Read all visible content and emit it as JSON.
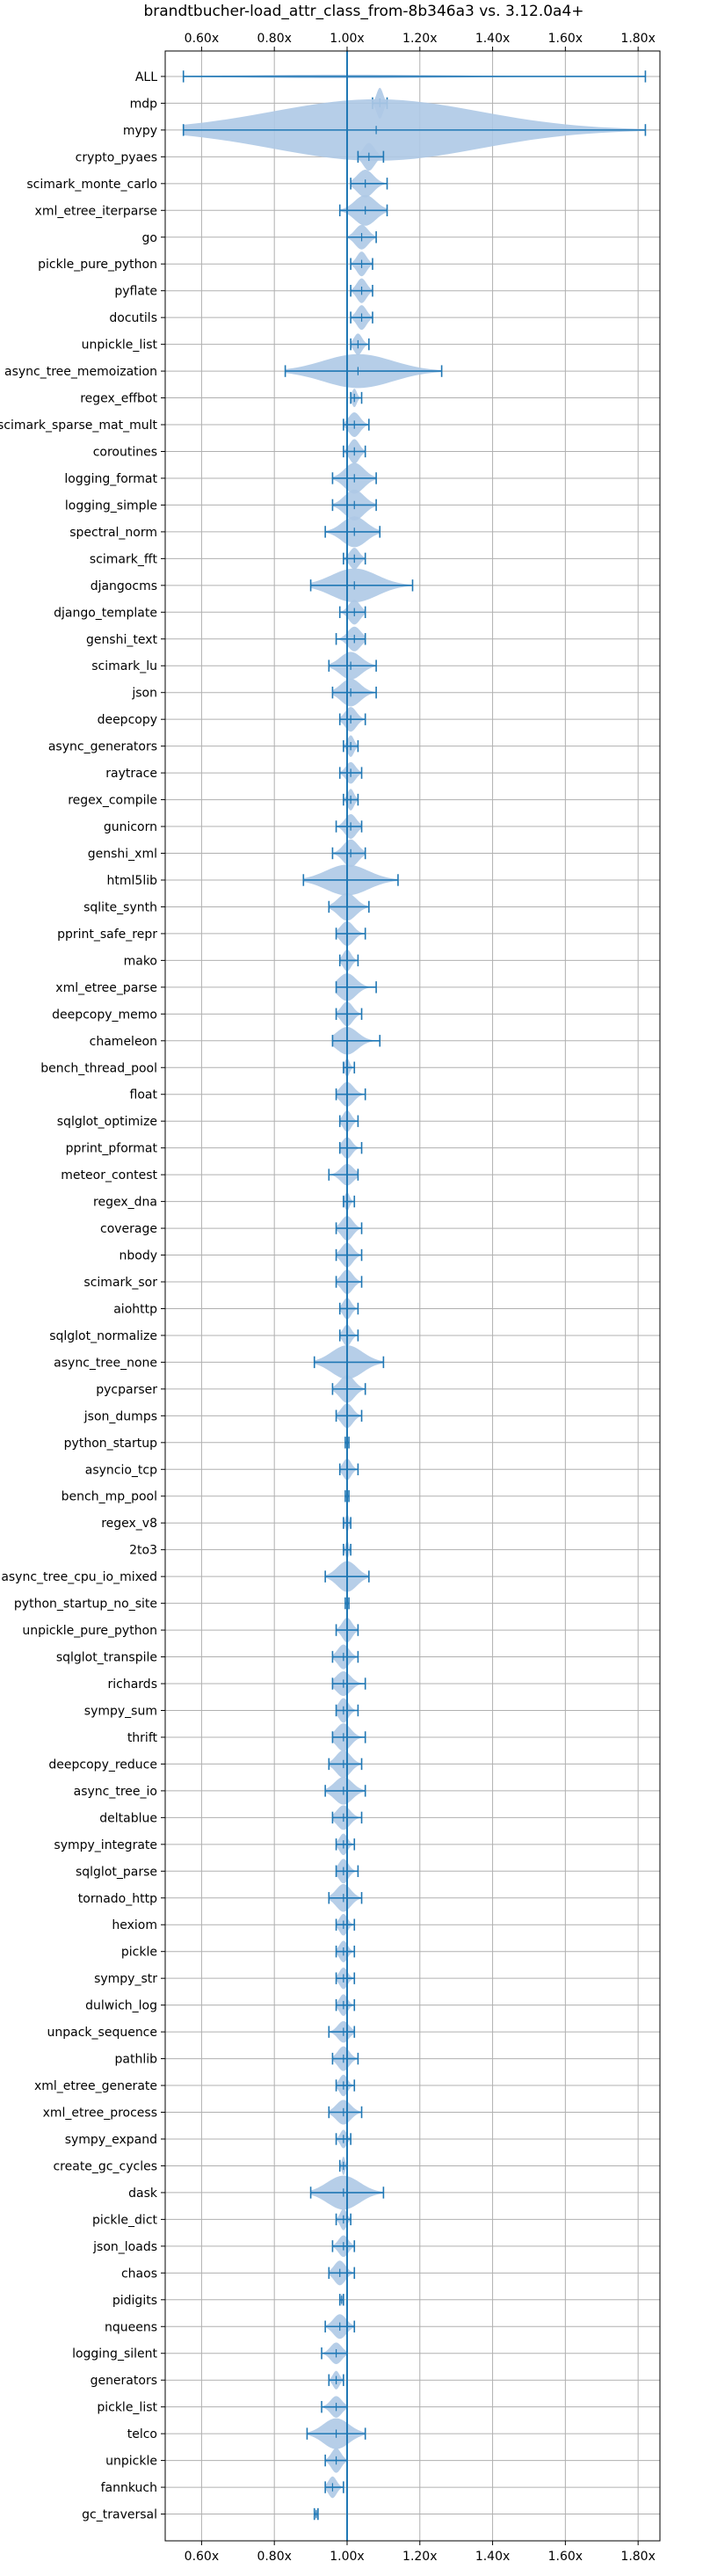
{
  "chart_data": {
    "type": "violin",
    "title": "brandtbucher-load_attr_class_from-8b346a3 vs. 3.12.0a4+",
    "xlabel": "",
    "ylabel": "",
    "xlim": [
      0.5,
      1.86
    ],
    "x_ticks": [
      0.6,
      0.8,
      1.0,
      1.2,
      1.4,
      1.6,
      1.8
    ],
    "x_tick_labels": [
      "0.60x",
      "0.80x",
      "1.00x",
      "1.20x",
      "1.40x",
      "1.60x",
      "1.80x"
    ],
    "reference_line": 1.0,
    "grid": true,
    "color": "#1f77b4",
    "fill_color": "#aec9e6",
    "series": [
      {
        "name": "ALL",
        "min": 0.55,
        "max": 1.82,
        "median": 1.0,
        "width": 0.06
      },
      {
        "name": "mdp",
        "min": 1.07,
        "max": 1.11,
        "median": 1.09,
        "width": 0.5
      },
      {
        "name": "mypy",
        "min": 0.55,
        "max": 1.82,
        "median": 1.08,
        "width": 1.0
      },
      {
        "name": "crypto_pyaes",
        "min": 1.03,
        "max": 1.1,
        "median": 1.06,
        "width": 0.45
      },
      {
        "name": "scimark_monte_carlo",
        "min": 1.01,
        "max": 1.11,
        "median": 1.05,
        "width": 0.45
      },
      {
        "name": "xml_etree_iterparse",
        "min": 0.98,
        "max": 1.11,
        "median": 1.05,
        "width": 0.5
      },
      {
        "name": "go",
        "min": 1.0,
        "max": 1.08,
        "median": 1.04,
        "width": 0.4
      },
      {
        "name": "pickle_pure_python",
        "min": 1.01,
        "max": 1.07,
        "median": 1.04,
        "width": 0.4
      },
      {
        "name": "pyflate",
        "min": 1.01,
        "max": 1.07,
        "median": 1.04,
        "width": 0.4
      },
      {
        "name": "docutils",
        "min": 1.01,
        "max": 1.07,
        "median": 1.04,
        "width": 0.4
      },
      {
        "name": "unpickle_list",
        "min": 1.01,
        "max": 1.06,
        "median": 1.03,
        "width": 0.35
      },
      {
        "name": "async_tree_memoization",
        "min": 0.83,
        "max": 1.26,
        "median": 1.03,
        "width": 0.55
      },
      {
        "name": "regex_effbot",
        "min": 1.01,
        "max": 1.04,
        "median": 1.02,
        "width": 0.3
      },
      {
        "name": "scimark_sparse_mat_mult",
        "min": 0.99,
        "max": 1.06,
        "median": 1.02,
        "width": 0.4
      },
      {
        "name": "coroutines",
        "min": 0.99,
        "max": 1.05,
        "median": 1.02,
        "width": 0.4
      },
      {
        "name": "logging_format",
        "min": 0.96,
        "max": 1.08,
        "median": 1.02,
        "width": 0.5
      },
      {
        "name": "logging_simple",
        "min": 0.96,
        "max": 1.08,
        "median": 1.02,
        "width": 0.5
      },
      {
        "name": "spectral_norm",
        "min": 0.94,
        "max": 1.09,
        "median": 1.02,
        "width": 0.5
      },
      {
        "name": "scimark_fft",
        "min": 0.99,
        "max": 1.05,
        "median": 1.02,
        "width": 0.35
      },
      {
        "name": "djangocms",
        "min": 0.9,
        "max": 1.18,
        "median": 1.02,
        "width": 0.55
      },
      {
        "name": "django_template",
        "min": 0.98,
        "max": 1.05,
        "median": 1.02,
        "width": 0.4
      },
      {
        "name": "genshi_text",
        "min": 0.97,
        "max": 1.05,
        "median": 1.02,
        "width": 0.4
      },
      {
        "name": "scimark_lu",
        "min": 0.95,
        "max": 1.08,
        "median": 1.01,
        "width": 0.45
      },
      {
        "name": "json",
        "min": 0.96,
        "max": 1.08,
        "median": 1.01,
        "width": 0.45
      },
      {
        "name": "deepcopy",
        "min": 0.98,
        "max": 1.05,
        "median": 1.01,
        "width": 0.4
      },
      {
        "name": "async_generators",
        "min": 0.99,
        "max": 1.03,
        "median": 1.01,
        "width": 0.35
      },
      {
        "name": "raytrace",
        "min": 0.98,
        "max": 1.04,
        "median": 1.01,
        "width": 0.35
      },
      {
        "name": "regex_compile",
        "min": 0.99,
        "max": 1.03,
        "median": 1.01,
        "width": 0.35
      },
      {
        "name": "gunicorn",
        "min": 0.97,
        "max": 1.04,
        "median": 1.01,
        "width": 0.4
      },
      {
        "name": "genshi_xml",
        "min": 0.96,
        "max": 1.05,
        "median": 1.01,
        "width": 0.45
      },
      {
        "name": "html5lib",
        "min": 0.88,
        "max": 1.14,
        "median": 1.0,
        "width": 0.5
      },
      {
        "name": "sqlite_synth",
        "min": 0.95,
        "max": 1.06,
        "median": 1.0,
        "width": 0.45
      },
      {
        "name": "pprint_safe_repr",
        "min": 0.97,
        "max": 1.05,
        "median": 1.0,
        "width": 0.4
      },
      {
        "name": "mako",
        "min": 0.98,
        "max": 1.03,
        "median": 1.0,
        "width": 0.35
      },
      {
        "name": "xml_etree_parse",
        "min": 0.97,
        "max": 1.08,
        "median": 1.0,
        "width": 0.45
      },
      {
        "name": "deepcopy_memo",
        "min": 0.97,
        "max": 1.04,
        "median": 1.0,
        "width": 0.4
      },
      {
        "name": "chameleon",
        "min": 0.96,
        "max": 1.09,
        "median": 1.0,
        "width": 0.45
      },
      {
        "name": "bench_thread_pool",
        "min": 0.99,
        "max": 1.02,
        "median": 1.0,
        "width": 0.3
      },
      {
        "name": "float",
        "min": 0.97,
        "max": 1.05,
        "median": 1.0,
        "width": 0.4
      },
      {
        "name": "sqlglot_optimize",
        "min": 0.98,
        "max": 1.03,
        "median": 1.0,
        "width": 0.35
      },
      {
        "name": "pprint_pformat",
        "min": 0.98,
        "max": 1.04,
        "median": 1.0,
        "width": 0.35
      },
      {
        "name": "meteor_contest",
        "min": 0.95,
        "max": 1.03,
        "median": 1.0,
        "width": 0.35
      },
      {
        "name": "regex_dna",
        "min": 0.99,
        "max": 1.02,
        "median": 1.0,
        "width": 0.3
      },
      {
        "name": "coverage",
        "min": 0.97,
        "max": 1.04,
        "median": 1.0,
        "width": 0.4
      },
      {
        "name": "nbody",
        "min": 0.97,
        "max": 1.04,
        "median": 1.0,
        "width": 0.4
      },
      {
        "name": "scimark_sor",
        "min": 0.97,
        "max": 1.04,
        "median": 1.0,
        "width": 0.4
      },
      {
        "name": "aiohttp",
        "min": 0.98,
        "max": 1.03,
        "median": 1.0,
        "width": 0.35
      },
      {
        "name": "sqlglot_normalize",
        "min": 0.98,
        "max": 1.03,
        "median": 1.0,
        "width": 0.35
      },
      {
        "name": "async_tree_none",
        "min": 0.91,
        "max": 1.1,
        "median": 1.0,
        "width": 0.55
      },
      {
        "name": "pycparser",
        "min": 0.96,
        "max": 1.05,
        "median": 1.0,
        "width": 0.45
      },
      {
        "name": "json_dumps",
        "min": 0.97,
        "max": 1.04,
        "median": 1.0,
        "width": 0.4
      },
      {
        "name": "python_startup",
        "min": 0.995,
        "max": 1.005,
        "median": 1.0,
        "width": 0.15
      },
      {
        "name": "asyncio_tcp",
        "min": 0.98,
        "max": 1.03,
        "median": 1.0,
        "width": 0.35
      },
      {
        "name": "bench_mp_pool",
        "min": 0.995,
        "max": 1.005,
        "median": 1.0,
        "width": 0.15
      },
      {
        "name": "regex_v8",
        "min": 0.99,
        "max": 1.01,
        "median": 1.0,
        "width": 0.3
      },
      {
        "name": "2to3",
        "min": 0.99,
        "max": 1.01,
        "median": 1.0,
        "width": 0.3
      },
      {
        "name": "async_tree_cpu_io_mixed",
        "min": 0.94,
        "max": 1.06,
        "median": 1.0,
        "width": 0.5
      },
      {
        "name": "python_startup_no_site",
        "min": 0.995,
        "max": 1.005,
        "median": 1.0,
        "width": 0.15
      },
      {
        "name": "unpickle_pure_python",
        "min": 0.97,
        "max": 1.03,
        "median": 1.0,
        "width": 0.4
      },
      {
        "name": "sqlglot_transpile",
        "min": 0.96,
        "max": 1.03,
        "median": 0.99,
        "width": 0.4
      },
      {
        "name": "richards",
        "min": 0.96,
        "max": 1.05,
        "median": 0.99,
        "width": 0.4
      },
      {
        "name": "sympy_sum",
        "min": 0.97,
        "max": 1.03,
        "median": 0.99,
        "width": 0.4
      },
      {
        "name": "thrift",
        "min": 0.96,
        "max": 1.05,
        "median": 0.99,
        "width": 0.45
      },
      {
        "name": "deepcopy_reduce",
        "min": 0.95,
        "max": 1.04,
        "median": 0.99,
        "width": 0.45
      },
      {
        "name": "async_tree_io",
        "min": 0.94,
        "max": 1.05,
        "median": 0.99,
        "width": 0.45
      },
      {
        "name": "deltablue",
        "min": 0.96,
        "max": 1.04,
        "median": 0.99,
        "width": 0.4
      },
      {
        "name": "sympy_integrate",
        "min": 0.97,
        "max": 1.02,
        "median": 0.99,
        "width": 0.35
      },
      {
        "name": "sqlglot_parse",
        "min": 0.97,
        "max": 1.03,
        "median": 0.99,
        "width": 0.4
      },
      {
        "name": "tornado_http",
        "min": 0.95,
        "max": 1.04,
        "median": 0.99,
        "width": 0.45
      },
      {
        "name": "hexiom",
        "min": 0.97,
        "max": 1.02,
        "median": 0.99,
        "width": 0.35
      },
      {
        "name": "pickle",
        "min": 0.97,
        "max": 1.02,
        "median": 0.99,
        "width": 0.35
      },
      {
        "name": "sympy_str",
        "min": 0.97,
        "max": 1.02,
        "median": 0.99,
        "width": 0.35
      },
      {
        "name": "dulwich_log",
        "min": 0.97,
        "max": 1.02,
        "median": 0.99,
        "width": 0.35
      },
      {
        "name": "unpack_sequence",
        "min": 0.95,
        "max": 1.02,
        "median": 0.99,
        "width": 0.35
      },
      {
        "name": "pathlib",
        "min": 0.96,
        "max": 1.03,
        "median": 0.99,
        "width": 0.4
      },
      {
        "name": "xml_etree_generate",
        "min": 0.97,
        "max": 1.02,
        "median": 0.99,
        "width": 0.35
      },
      {
        "name": "xml_etree_process",
        "min": 0.95,
        "max": 1.04,
        "median": 0.99,
        "width": 0.4
      },
      {
        "name": "sympy_expand",
        "min": 0.97,
        "max": 1.01,
        "median": 0.99,
        "width": 0.3
      },
      {
        "name": "create_gc_cycles",
        "min": 0.98,
        "max": 1.0,
        "median": 0.99,
        "width": 0.3
      },
      {
        "name": "dask",
        "min": 0.9,
        "max": 1.1,
        "median": 0.99,
        "width": 0.55
      },
      {
        "name": "pickle_dict",
        "min": 0.97,
        "max": 1.01,
        "median": 0.99,
        "width": 0.35
      },
      {
        "name": "json_loads",
        "min": 0.96,
        "max": 1.02,
        "median": 0.99,
        "width": 0.35
      },
      {
        "name": "chaos",
        "min": 0.95,
        "max": 1.02,
        "median": 0.98,
        "width": 0.4
      },
      {
        "name": "pidigits",
        "min": 0.98,
        "max": 0.99,
        "median": 0.985,
        "width": 0.2
      },
      {
        "name": "nqueens",
        "min": 0.94,
        "max": 1.02,
        "median": 0.98,
        "width": 0.4
      },
      {
        "name": "logging_silent",
        "min": 0.93,
        "max": 1.0,
        "median": 0.97,
        "width": 0.35
      },
      {
        "name": "generators",
        "min": 0.95,
        "max": 0.99,
        "median": 0.97,
        "width": 0.3
      },
      {
        "name": "pickle_list",
        "min": 0.93,
        "max": 1.0,
        "median": 0.97,
        "width": 0.35
      },
      {
        "name": "telco",
        "min": 0.89,
        "max": 1.05,
        "median": 0.97,
        "width": 0.5
      },
      {
        "name": "unpickle",
        "min": 0.94,
        "max": 1.0,
        "median": 0.97,
        "width": 0.4
      },
      {
        "name": "fannkuch",
        "min": 0.94,
        "max": 0.99,
        "median": 0.96,
        "width": 0.35
      },
      {
        "name": "gc_traversal",
        "min": 0.91,
        "max": 0.92,
        "median": 0.915,
        "width": 0.15
      }
    ]
  }
}
